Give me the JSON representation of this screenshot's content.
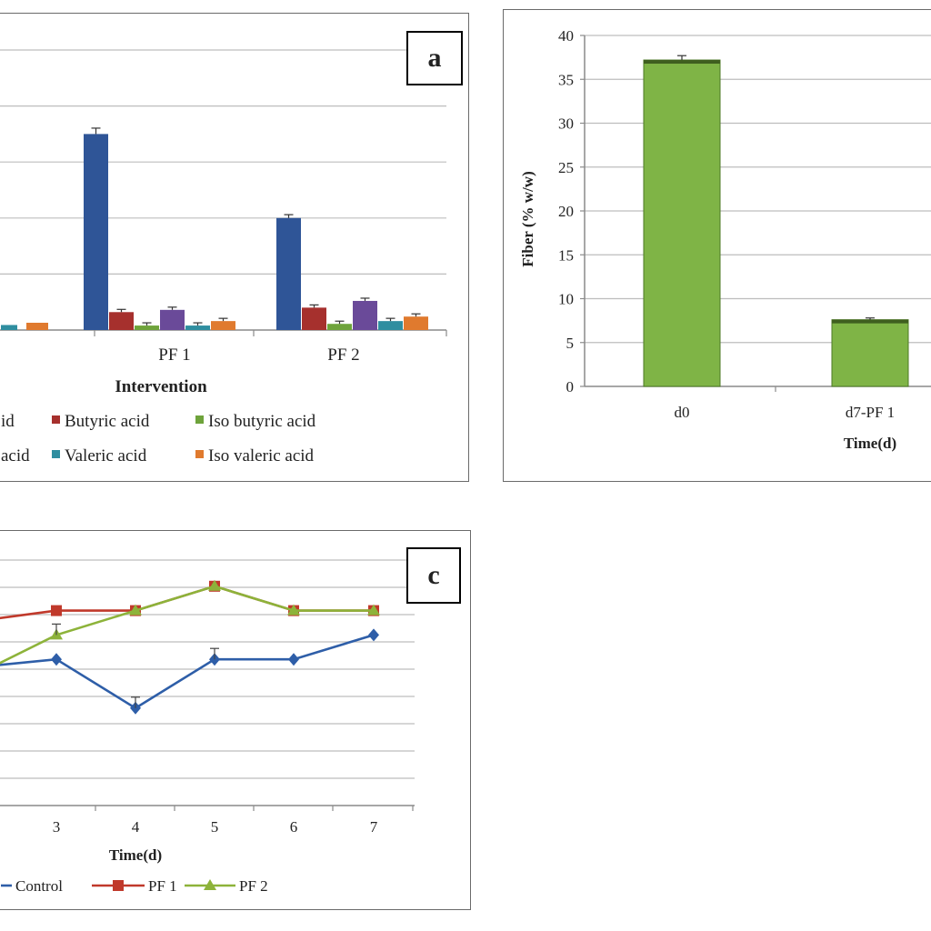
{
  "colors": {
    "acetic": "#2f5597",
    "butyric": "#a6302d",
    "iso_butyric": "#6ea33b",
    "propionic": "#6a4a99",
    "valeric": "#2f8ea0",
    "iso_valeric": "#e07a2e",
    "fiber_bar": "#7fb446",
    "control": "#2e5ea8",
    "pf1": "#c0392b",
    "pf2": "#8db33a",
    "grid": "#bdbdbd",
    "frame": "#6a6a6a"
  },
  "panel_a": {
    "letter": "a"
  },
  "panel_b": {
    "letter": ""
  },
  "panel_c": {
    "letter": "c"
  },
  "chart_data": [
    {
      "type": "bar",
      "panel": "a",
      "xlabel": "Intervention",
      "categories": [
        "PF 1",
        "PF 2"
      ],
      "series": [
        {
          "name": "",
          "values": [
            35,
            20
          ]
        },
        {
          "name": "Butyric acid",
          "values": [
            3.2,
            4.0
          ]
        },
        {
          "name": "Iso butyric acid",
          "values": [
            0.8,
            1.1
          ]
        },
        {
          "name": "",
          "values": [
            3.6,
            5.2
          ]
        },
        {
          "name": "Valeric acid",
          "values": [
            0.8,
            1.6
          ]
        },
        {
          "name": "Iso valeric acid",
          "values": [
            1.6,
            2.4
          ]
        }
      ],
      "legend_visible": [
        "id",
        "Butyric acid",
        "Iso butyric acid",
        "acid",
        "Valeric acid",
        "Iso valeric acid"
      ],
      "ylim": [
        0,
        50
      ],
      "grid": true,
      "legend": "bottom"
    },
    {
      "type": "bar",
      "panel": "b",
      "xlabel": "Time(d)",
      "ylabel": "Fiber (% w/w)",
      "categories": [
        "d0",
        "d7-PF 1"
      ],
      "values": [
        37.2,
        7.6
      ],
      "errors": [
        0.5,
        0.2
      ],
      "ylim": [
        0,
        40
      ],
      "yticks": [
        "0",
        "5",
        "10",
        "15",
        "20",
        "25",
        "30",
        "35",
        "40"
      ],
      "grid": true
    },
    {
      "type": "line",
      "panel": "c",
      "xlabel": "Time(d)",
      "x": [
        3,
        4,
        5,
        6,
        7
      ],
      "series": [
        {
          "name": "Control",
          "values": [
            7.2,
            6.2,
            7.2,
            7.2,
            7.7
          ]
        },
        {
          "name": "PF 1",
          "values": [
            8.2,
            8.2,
            8.7,
            8.2,
            8.2
          ]
        },
        {
          "name": "PF 2",
          "values": [
            7.7,
            8.2,
            8.7,
            8.2,
            8.2
          ]
        }
      ],
      "grid": true,
      "legend": "bottom"
    }
  ]
}
